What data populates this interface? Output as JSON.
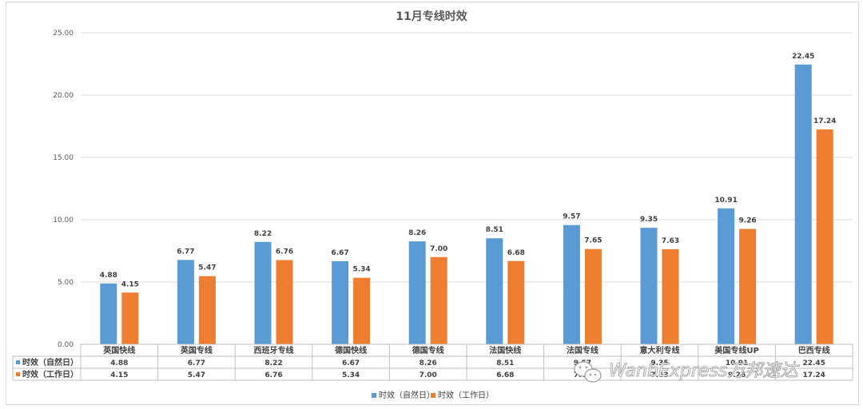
{
  "chart_data": {
    "type": "bar",
    "title": "11月专线时效",
    "xlabel": "",
    "ylabel": "",
    "ylim": [
      0,
      25
    ],
    "yticks": [
      "0.00",
      "5.00",
      "10.00",
      "15.00",
      "20.00",
      "25.00"
    ],
    "grid": true,
    "legend_position": "bottom",
    "data_table": true,
    "categories": [
      "英国快线",
      "英国专线",
      "西班牙专线",
      "德国快线",
      "德国专线",
      "法国快线",
      "法国专线",
      "意大利专线",
      "美国专线UP",
      "巴西专线"
    ],
    "series": [
      {
        "name": "时效（自然日）",
        "color": "#5b9bd5",
        "values": [
          4.88,
          6.77,
          8.22,
          6.67,
          8.26,
          8.51,
          9.57,
          9.35,
          10.91,
          22.45
        ],
        "labels": [
          "4.88",
          "6.77",
          "8.22",
          "6.67",
          "8.26",
          "8.51",
          "9.57",
          "9.35",
          "10.91",
          "22.45"
        ]
      },
      {
        "name": "时效（工作日）",
        "color": "#ed7d31",
        "values": [
          4.15,
          5.47,
          6.76,
          5.34,
          7.0,
          6.68,
          7.65,
          7.63,
          9.26,
          17.24
        ],
        "labels": [
          "4.15",
          "5.47",
          "6.76",
          "5.34",
          "7.00",
          "6.68",
          "7.65",
          "7.63",
          "9.26",
          "17.24"
        ]
      }
    ]
  },
  "watermark": {
    "text": "WanbExpress万邦速达",
    "icon": "wechat-icon"
  }
}
